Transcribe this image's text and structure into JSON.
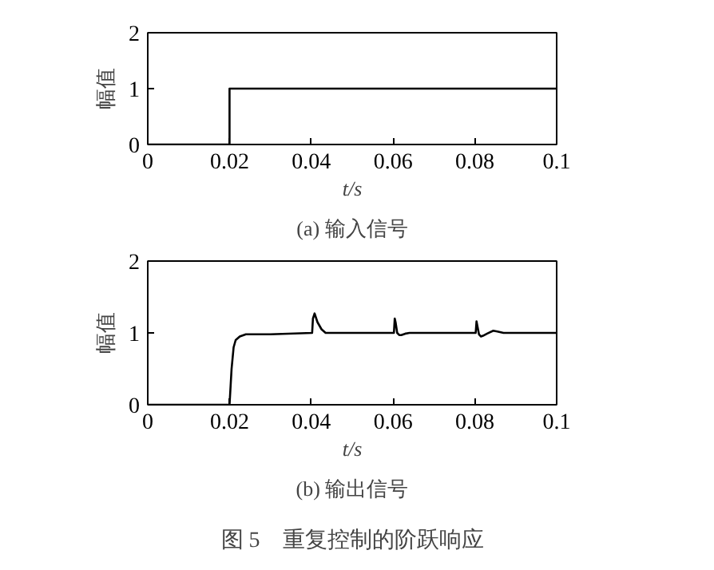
{
  "chart_data": [
    {
      "type": "line",
      "title": "(a) 输入信号",
      "xlabel": "t/s",
      "ylabel": "幅值",
      "x": [
        0,
        0.02,
        0.02,
        0.1
      ],
      "series": [
        {
          "color": "#000000",
          "values": [
            0,
            0,
            1,
            1
          ]
        }
      ],
      "xlim": [
        0,
        0.1
      ],
      "ylim": [
        0,
        2
      ],
      "xticks": [
        0,
        0.02,
        0.04,
        0.06,
        0.08,
        0.1
      ],
      "yticks": [
        0,
        1,
        2
      ],
      "grid": false,
      "line_style": "solid"
    },
    {
      "type": "line",
      "title": "(b) 输出信号",
      "xlabel": "t/s",
      "ylabel": "幅值",
      "x": [
        0,
        0.02,
        0.0205,
        0.021,
        0.0215,
        0.0225,
        0.024,
        0.03,
        0.0402,
        0.0404,
        0.0408,
        0.0415,
        0.0425,
        0.0435,
        0.045,
        0.0602,
        0.0604,
        0.0606,
        0.061,
        0.0615,
        0.062,
        0.063,
        0.064,
        0.0802,
        0.0804,
        0.0806,
        0.081,
        0.0815,
        0.082,
        0.083,
        0.0845,
        0.0855,
        0.087,
        0.1
      ],
      "series": [
        {
          "color": "#000000",
          "values": [
            0,
            0,
            0.5,
            0.8,
            0.9,
            0.95,
            0.98,
            0.98,
            1.0,
            1.2,
            1.27,
            1.15,
            1.05,
            1.0,
            1.0,
            1.0,
            1.2,
            1.15,
            1.0,
            0.97,
            0.97,
            0.99,
            1.0,
            1.0,
            1.16,
            1.1,
            0.98,
            0.95,
            0.96,
            0.99,
            1.03,
            1.02,
            1.0,
            1.0
          ]
        }
      ],
      "xlim": [
        0,
        0.1
      ],
      "ylim": [
        0,
        2
      ],
      "xticks": [
        0,
        0.02,
        0.04,
        0.06,
        0.08,
        0.1
      ],
      "yticks": [
        0,
        1,
        2
      ],
      "grid": false,
      "line_style": "solid",
      "annotations": [
        "图 5　重复控制的阶跃响应"
      ]
    }
  ]
}
